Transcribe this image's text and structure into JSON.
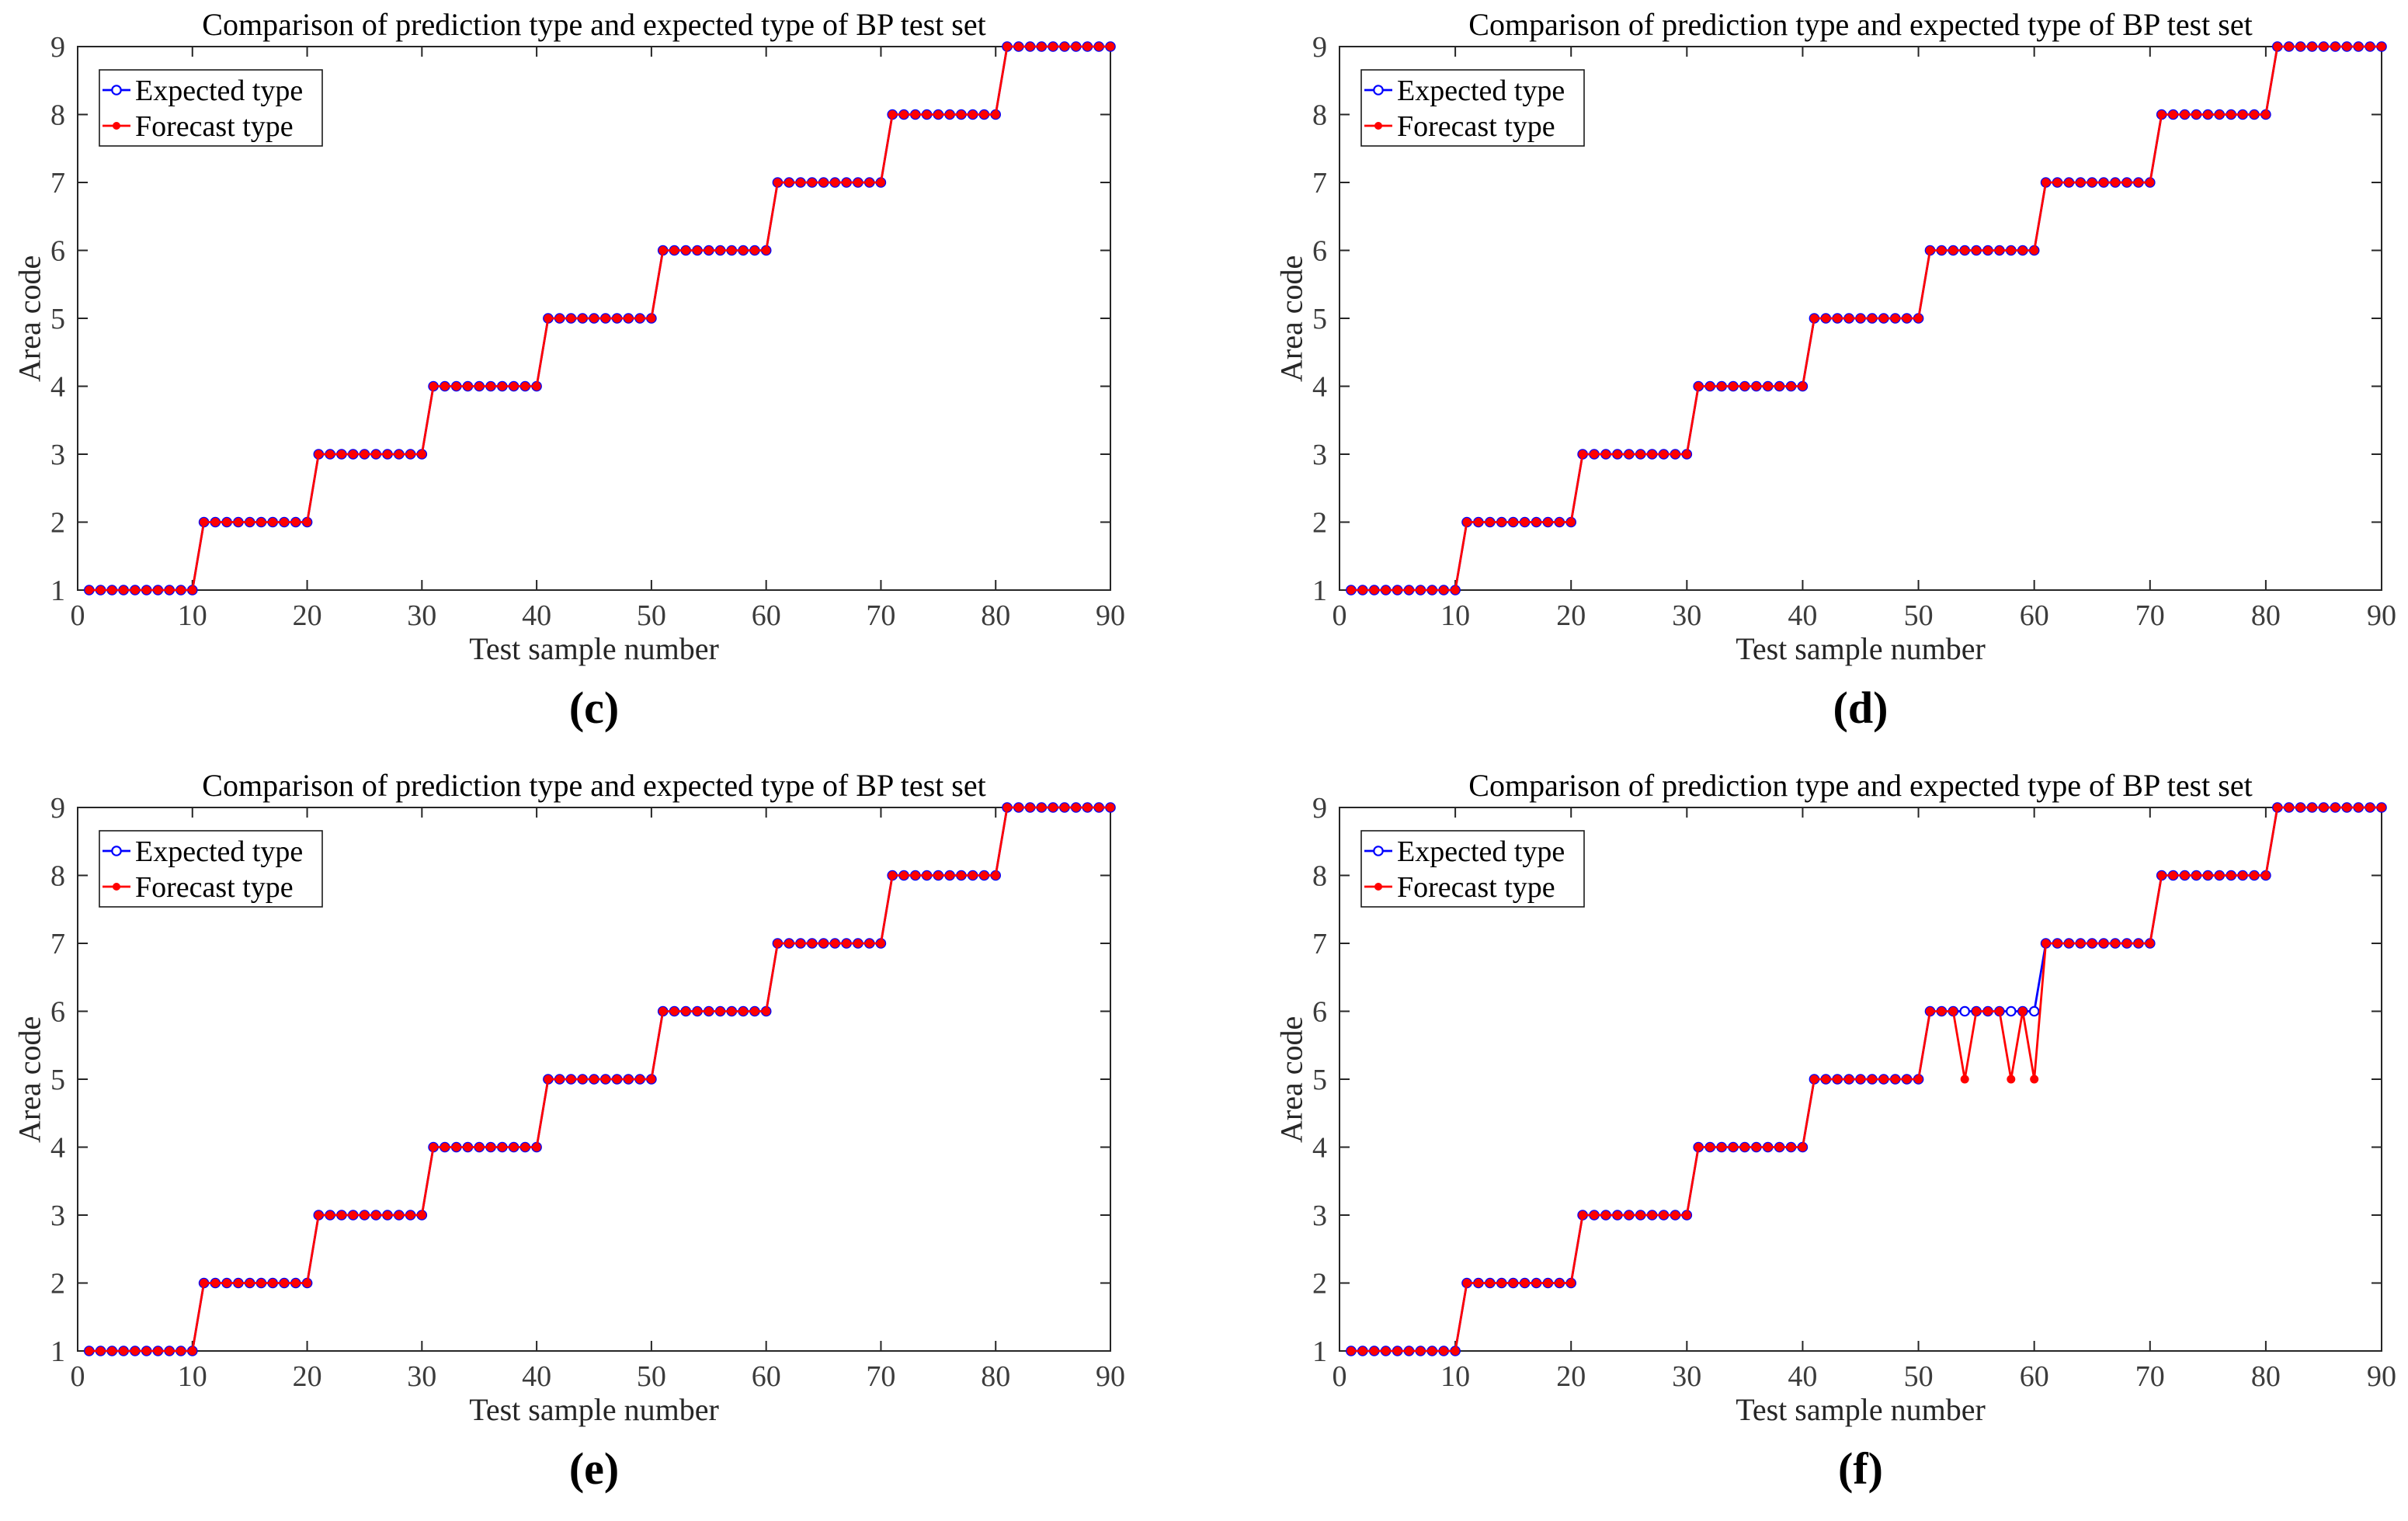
{
  "page": {
    "background": "#ffffff"
  },
  "chart_data": [
    {
      "panel": "c",
      "caption": "(c)",
      "type": "line",
      "title": "Comparison of prediction type and expected type of BP test set",
      "xlabel": "Test sample number",
      "ylabel": "Area code",
      "xlim": [
        0,
        90
      ],
      "ylim": [
        1,
        9
      ],
      "xticks": [
        0,
        10,
        20,
        30,
        40,
        50,
        60,
        70,
        80,
        90
      ],
      "yticks": [
        1,
        2,
        3,
        4,
        5,
        6,
        7,
        8,
        9
      ],
      "grid": false,
      "x": {
        "start": 1,
        "end": 90,
        "step": 1
      },
      "legend": {
        "position": "top-left",
        "entries": [
          {
            "label": "Expected type",
            "color": "#0000FF",
            "marker": "open-circle"
          },
          {
            "label": "Forecast type",
            "color": "#FF0000",
            "marker": "filled-circle"
          }
        ]
      },
      "series": [
        {
          "name": "Expected type",
          "values": [
            1,
            1,
            1,
            1,
            1,
            1,
            1,
            1,
            1,
            1,
            2,
            2,
            2,
            2,
            2,
            2,
            2,
            2,
            2,
            2,
            3,
            3,
            3,
            3,
            3,
            3,
            3,
            3,
            3,
            3,
            4,
            4,
            4,
            4,
            4,
            4,
            4,
            4,
            4,
            4,
            5,
            5,
            5,
            5,
            5,
            5,
            5,
            5,
            5,
            5,
            6,
            6,
            6,
            6,
            6,
            6,
            6,
            6,
            6,
            6,
            7,
            7,
            7,
            7,
            7,
            7,
            7,
            7,
            7,
            7,
            8,
            8,
            8,
            8,
            8,
            8,
            8,
            8,
            8,
            8,
            9,
            9,
            9,
            9,
            9,
            9,
            9,
            9,
            9,
            9
          ]
        },
        {
          "name": "Forecast type",
          "values": [
            1,
            1,
            1,
            1,
            1,
            1,
            1,
            1,
            1,
            1,
            2,
            2,
            2,
            2,
            2,
            2,
            2,
            2,
            2,
            2,
            3,
            3,
            3,
            3,
            3,
            3,
            3,
            3,
            3,
            3,
            4,
            4,
            4,
            4,
            4,
            4,
            4,
            4,
            4,
            4,
            5,
            5,
            5,
            5,
            5,
            5,
            5,
            5,
            5,
            5,
            6,
            6,
            6,
            6,
            6,
            6,
            6,
            6,
            6,
            6,
            7,
            7,
            7,
            7,
            7,
            7,
            7,
            7,
            7,
            7,
            8,
            8,
            8,
            8,
            8,
            8,
            8,
            8,
            8,
            8,
            9,
            9,
            9,
            9,
            9,
            9,
            9,
            9,
            9,
            9
          ]
        }
      ]
    },
    {
      "panel": "d",
      "caption": "(d)",
      "type": "line",
      "title": "Comparison of prediction type and expected type of BP test set",
      "xlabel": "Test sample number",
      "ylabel": "Area code",
      "xlim": [
        0,
        90
      ],
      "ylim": [
        1,
        9
      ],
      "xticks": [
        0,
        10,
        20,
        30,
        40,
        50,
        60,
        70,
        80,
        90
      ],
      "yticks": [
        1,
        2,
        3,
        4,
        5,
        6,
        7,
        8,
        9
      ],
      "grid": false,
      "x": {
        "start": 1,
        "end": 90,
        "step": 1
      },
      "legend": {
        "position": "top-left",
        "entries": [
          {
            "label": "Expected type",
            "color": "#0000FF",
            "marker": "open-circle"
          },
          {
            "label": "Forecast type",
            "color": "#FF0000",
            "marker": "filled-circle"
          }
        ]
      },
      "series": [
        {
          "name": "Expected type",
          "values": [
            1,
            1,
            1,
            1,
            1,
            1,
            1,
            1,
            1,
            1,
            2,
            2,
            2,
            2,
            2,
            2,
            2,
            2,
            2,
            2,
            3,
            3,
            3,
            3,
            3,
            3,
            3,
            3,
            3,
            3,
            4,
            4,
            4,
            4,
            4,
            4,
            4,
            4,
            4,
            4,
            5,
            5,
            5,
            5,
            5,
            5,
            5,
            5,
            5,
            5,
            6,
            6,
            6,
            6,
            6,
            6,
            6,
            6,
            6,
            6,
            7,
            7,
            7,
            7,
            7,
            7,
            7,
            7,
            7,
            7,
            8,
            8,
            8,
            8,
            8,
            8,
            8,
            8,
            8,
            8,
            9,
            9,
            9,
            9,
            9,
            9,
            9,
            9,
            9,
            9
          ]
        },
        {
          "name": "Forecast type",
          "values": [
            1,
            1,
            1,
            1,
            1,
            1,
            1,
            1,
            1,
            1,
            2,
            2,
            2,
            2,
            2,
            2,
            2,
            2,
            2,
            2,
            3,
            3,
            3,
            3,
            3,
            3,
            3,
            3,
            3,
            3,
            4,
            4,
            4,
            4,
            4,
            4,
            4,
            4,
            4,
            4,
            5,
            5,
            5,
            5,
            5,
            5,
            5,
            5,
            5,
            5,
            6,
            6,
            6,
            6,
            6,
            6,
            6,
            6,
            6,
            6,
            7,
            7,
            7,
            7,
            7,
            7,
            7,
            7,
            7,
            7,
            8,
            8,
            8,
            8,
            8,
            8,
            8,
            8,
            8,
            8,
            9,
            9,
            9,
            9,
            9,
            9,
            9,
            9,
            9,
            9
          ]
        }
      ]
    },
    {
      "panel": "e",
      "caption": "(e)",
      "type": "line",
      "title": "Comparison of prediction type and expected type of BP test set",
      "xlabel": "Test sample number",
      "ylabel": "Area code",
      "xlim": [
        0,
        90
      ],
      "ylim": [
        1,
        9
      ],
      "xticks": [
        0,
        10,
        20,
        30,
        40,
        50,
        60,
        70,
        80,
        90
      ],
      "yticks": [
        1,
        2,
        3,
        4,
        5,
        6,
        7,
        8,
        9
      ],
      "grid": false,
      "x": {
        "start": 1,
        "end": 90,
        "step": 1
      },
      "legend": {
        "position": "top-left",
        "entries": [
          {
            "label": "Expected type",
            "color": "#0000FF",
            "marker": "open-circle"
          },
          {
            "label": "Forecast type",
            "color": "#FF0000",
            "marker": "filled-circle"
          }
        ]
      },
      "series": [
        {
          "name": "Expected type",
          "values": [
            1,
            1,
            1,
            1,
            1,
            1,
            1,
            1,
            1,
            1,
            2,
            2,
            2,
            2,
            2,
            2,
            2,
            2,
            2,
            2,
            3,
            3,
            3,
            3,
            3,
            3,
            3,
            3,
            3,
            3,
            4,
            4,
            4,
            4,
            4,
            4,
            4,
            4,
            4,
            4,
            5,
            5,
            5,
            5,
            5,
            5,
            5,
            5,
            5,
            5,
            6,
            6,
            6,
            6,
            6,
            6,
            6,
            6,
            6,
            6,
            7,
            7,
            7,
            7,
            7,
            7,
            7,
            7,
            7,
            7,
            8,
            8,
            8,
            8,
            8,
            8,
            8,
            8,
            8,
            8,
            9,
            9,
            9,
            9,
            9,
            9,
            9,
            9,
            9,
            9
          ]
        },
        {
          "name": "Forecast type",
          "values": [
            1,
            1,
            1,
            1,
            1,
            1,
            1,
            1,
            1,
            1,
            2,
            2,
            2,
            2,
            2,
            2,
            2,
            2,
            2,
            2,
            3,
            3,
            3,
            3,
            3,
            3,
            3,
            3,
            3,
            3,
            4,
            4,
            4,
            4,
            4,
            4,
            4,
            4,
            4,
            4,
            5,
            5,
            5,
            5,
            5,
            5,
            5,
            5,
            5,
            5,
            6,
            6,
            6,
            6,
            6,
            6,
            6,
            6,
            6,
            6,
            7,
            7,
            7,
            7,
            7,
            7,
            7,
            7,
            7,
            7,
            8,
            8,
            8,
            8,
            8,
            8,
            8,
            8,
            8,
            8,
            9,
            9,
            9,
            9,
            9,
            9,
            9,
            9,
            9,
            9
          ]
        }
      ]
    },
    {
      "panel": "f",
      "caption": "(f)",
      "type": "line",
      "title": "Comparison of prediction type and expected type of BP test set",
      "xlabel": "Test sample number",
      "ylabel": "Area code",
      "xlim": [
        0,
        90
      ],
      "ylim": [
        1,
        9
      ],
      "xticks": [
        0,
        10,
        20,
        30,
        40,
        50,
        60,
        70,
        80,
        90
      ],
      "yticks": [
        1,
        2,
        3,
        4,
        5,
        6,
        7,
        8,
        9
      ],
      "grid": false,
      "x": {
        "start": 1,
        "end": 90,
        "step": 1
      },
      "forecast_deviations": [
        {
          "sample": 54,
          "expected": 6,
          "forecast": 5
        },
        {
          "sample": 58,
          "expected": 6,
          "forecast": 5
        },
        {
          "sample": 60,
          "expected": 6,
          "forecast": 5
        }
      ],
      "legend": {
        "position": "top-left",
        "entries": [
          {
            "label": "Expected type",
            "color": "#0000FF",
            "marker": "open-circle"
          },
          {
            "label": "Forecast type",
            "color": "#FF0000",
            "marker": "filled-circle"
          }
        ]
      },
      "series": [
        {
          "name": "Expected type",
          "values": [
            1,
            1,
            1,
            1,
            1,
            1,
            1,
            1,
            1,
            1,
            2,
            2,
            2,
            2,
            2,
            2,
            2,
            2,
            2,
            2,
            3,
            3,
            3,
            3,
            3,
            3,
            3,
            3,
            3,
            3,
            4,
            4,
            4,
            4,
            4,
            4,
            4,
            4,
            4,
            4,
            5,
            5,
            5,
            5,
            5,
            5,
            5,
            5,
            5,
            5,
            6,
            6,
            6,
            6,
            6,
            6,
            6,
            6,
            6,
            6,
            7,
            7,
            7,
            7,
            7,
            7,
            7,
            7,
            7,
            7,
            8,
            8,
            8,
            8,
            8,
            8,
            8,
            8,
            8,
            8,
            9,
            9,
            9,
            9,
            9,
            9,
            9,
            9,
            9,
            9
          ]
        },
        {
          "name": "Forecast type",
          "values": [
            1,
            1,
            1,
            1,
            1,
            1,
            1,
            1,
            1,
            1,
            2,
            2,
            2,
            2,
            2,
            2,
            2,
            2,
            2,
            2,
            3,
            3,
            3,
            3,
            3,
            3,
            3,
            3,
            3,
            3,
            4,
            4,
            4,
            4,
            4,
            4,
            4,
            4,
            4,
            4,
            5,
            5,
            5,
            5,
            5,
            5,
            5,
            5,
            5,
            5,
            6,
            6,
            6,
            5,
            6,
            6,
            6,
            5,
            6,
            5,
            7,
            7,
            7,
            7,
            7,
            7,
            7,
            7,
            7,
            7,
            8,
            8,
            8,
            8,
            8,
            8,
            8,
            8,
            8,
            8,
            9,
            9,
            9,
            9,
            9,
            9,
            9,
            9,
            9,
            9
          ]
        }
      ]
    }
  ]
}
